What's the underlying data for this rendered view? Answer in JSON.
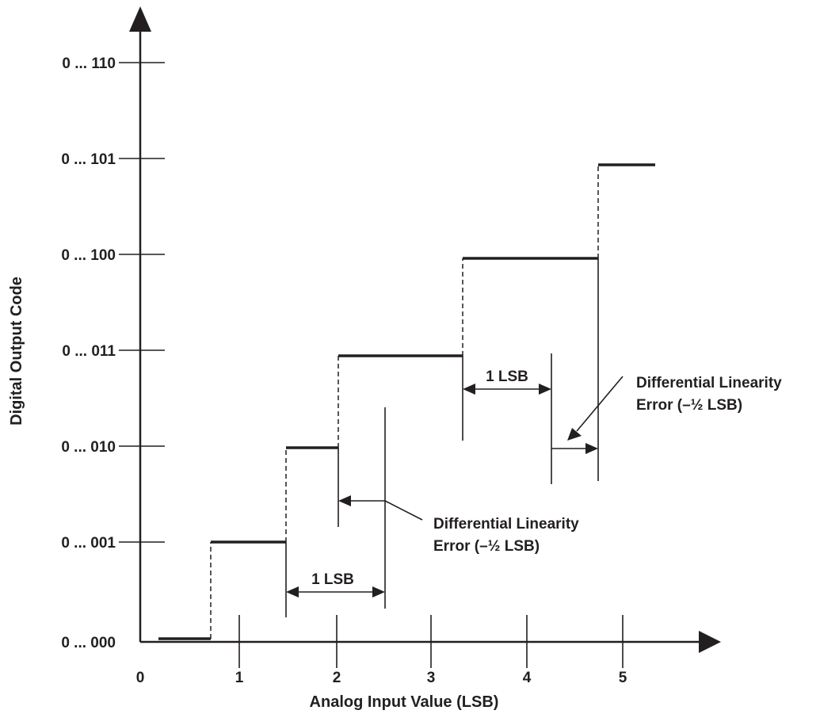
{
  "diagram": {
    "y_axis_title": "Digital Output Code",
    "x_axis_title": "Analog Input Value (LSB)",
    "y_tick_labels": [
      "0 ... 000",
      "0 ... 001",
      "0 ... 010",
      "0 ... 011",
      "0 ... 100",
      "0 ... 101",
      "0 ... 110"
    ],
    "x_tick_labels": [
      "0",
      "1",
      "2",
      "3",
      "4",
      "5"
    ],
    "annotations": {
      "lsb_left": "1 LSB",
      "lsb_right": "1 LSB",
      "dle_lower_line1": "Differential Linearity",
      "dle_lower_line2": "Error (–½ LSB)",
      "dle_upper_line1": "Differential Linearity",
      "dle_upper_line2": "Error (–½ LSB)"
    },
    "transfer_steps": [
      {
        "code": "0 ... 000",
        "from_lsb": 0.2,
        "to_lsb": 0.7
      },
      {
        "code": "0 ... 001",
        "from_lsb": 0.7,
        "to_lsb": 1.45
      },
      {
        "code": "0 ... 010",
        "from_lsb": 1.45,
        "to_lsb": 2.0
      },
      {
        "code": "0 ... 011",
        "from_lsb": 2.0,
        "to_lsb": 3.35
      },
      {
        "code": "0 ... 100",
        "from_lsb": 3.35,
        "to_lsb": 4.75
      },
      {
        "code": "0 ... 101",
        "from_lsb": 4.75,
        "to_lsb": 5.35
      }
    ]
  }
}
